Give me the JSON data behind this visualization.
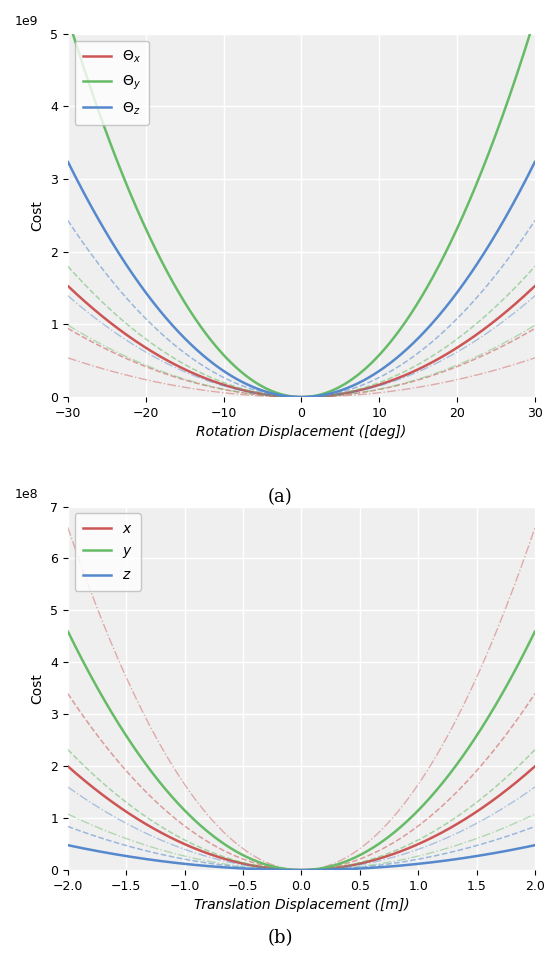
{
  "fig_width": 5.6,
  "fig_height": 9.66,
  "dpi": 100,
  "subplot_a": {
    "xlim": [
      -30,
      30
    ],
    "ylim": [
      0,
      5000000000.0
    ],
    "yticks": [
      0,
      1000000000.0,
      2000000000.0,
      3000000000.0,
      4000000000.0,
      5000000000.0
    ],
    "xticks": [
      -30,
      -20,
      -10,
      0,
      10,
      20,
      30
    ],
    "xlabel": "Rotation Displacement ([deg])",
    "ylabel": "Cost",
    "label_a": "(a)",
    "legend": [
      {
        "label": "$\\Theta_x$",
        "color": "#cc5555",
        "lw": 1.8
      },
      {
        "label": "$\\Theta_y$",
        "color": "#66bb66",
        "lw": 1.8
      },
      {
        "label": "$\\Theta_z$",
        "color": "#5588cc",
        "lw": 1.8
      }
    ],
    "series": [
      {
        "color": "#cc5555",
        "linestyle": "-",
        "lw": 1.8,
        "a": 0.0017,
        "b": 2.0,
        "alpha": 1.0
      },
      {
        "color": "#cc5555",
        "linestyle": "--",
        "lw": 1.1,
        "a": 0.00105,
        "b": 2.0,
        "alpha": 0.55
      },
      {
        "color": "#cc5555",
        "linestyle": "-.",
        "lw": 1.0,
        "a": 0.0006,
        "b": 2.0,
        "alpha": 0.45
      },
      {
        "color": "#66bb66",
        "linestyle": "-",
        "lw": 1.8,
        "a": 0.0058,
        "b": 2.0,
        "alpha": 1.0
      },
      {
        "color": "#66bb66",
        "linestyle": "--",
        "lw": 1.1,
        "a": 0.002,
        "b": 2.0,
        "alpha": 0.55
      },
      {
        "color": "#66bb66",
        "linestyle": "-.",
        "lw": 1.0,
        "a": 0.0011,
        "b": 2.0,
        "alpha": 0.45
      },
      {
        "color": "#5588cc",
        "linestyle": "-",
        "lw": 1.8,
        "a": 0.0036,
        "b": 2.0,
        "alpha": 1.0
      },
      {
        "color": "#5588cc",
        "linestyle": "--",
        "lw": 1.1,
        "a": 0.0027,
        "b": 2.0,
        "alpha": 0.55
      },
      {
        "color": "#5588cc",
        "linestyle": "-.",
        "lw": 1.0,
        "a": 0.00155,
        "b": 2.0,
        "alpha": 0.45
      }
    ]
  },
  "subplot_b": {
    "xlim": [
      -2.0,
      2.0
    ],
    "ylim": [
      0,
      700000000.0
    ],
    "yticks": [
      0,
      100000000.0,
      200000000.0,
      300000000.0,
      400000000.0,
      500000000.0,
      600000000.0,
      700000000.0
    ],
    "xticks": [
      -2.0,
      -1.5,
      -1.0,
      -0.5,
      0.0,
      0.5,
      1.0,
      1.5,
      2.0
    ],
    "xlabel": "Translation Displacement ([m])",
    "ylabel": "Cost",
    "label_b": "(b)",
    "legend": [
      {
        "label": "$x$",
        "color": "#cc5555",
        "lw": 1.8
      },
      {
        "label": "$y$",
        "color": "#66bb66",
        "lw": 1.8
      },
      {
        "label": "$z$",
        "color": "#5588cc",
        "lw": 1.8
      }
    ],
    "series": [
      {
        "color": "#cc5555",
        "linestyle": "-",
        "lw": 1.8,
        "a": 0.5,
        "b": 2.0,
        "alpha": 1.0
      },
      {
        "color": "#cc5555",
        "linestyle": "--",
        "lw": 1.1,
        "a": 0.85,
        "b": 2.0,
        "alpha": 0.55
      },
      {
        "color": "#cc5555",
        "linestyle": "-.",
        "lw": 1.0,
        "a": 1.65,
        "b": 2.0,
        "alpha": 0.45
      },
      {
        "color": "#66bb66",
        "linestyle": "-",
        "lw": 1.8,
        "a": 1.15,
        "b": 2.0,
        "alpha": 1.0
      },
      {
        "color": "#66bb66",
        "linestyle": "--",
        "lw": 1.1,
        "a": 0.58,
        "b": 2.0,
        "alpha": 0.55
      },
      {
        "color": "#66bb66",
        "linestyle": "-.",
        "lw": 1.0,
        "a": 0.27,
        "b": 2.0,
        "alpha": 0.45
      },
      {
        "color": "#5588cc",
        "linestyle": "-",
        "lw": 1.8,
        "a": 0.12,
        "b": 2.0,
        "alpha": 1.0
      },
      {
        "color": "#5588cc",
        "linestyle": "--",
        "lw": 1.1,
        "a": 0.21,
        "b": 2.0,
        "alpha": 0.55
      },
      {
        "color": "#5588cc",
        "linestyle": "-.",
        "lw": 1.0,
        "a": 0.4,
        "b": 2.0,
        "alpha": 0.45
      }
    ]
  },
  "background_color": "#efefef",
  "grid_color": "#ffffff",
  "grid_lw": 1.0
}
